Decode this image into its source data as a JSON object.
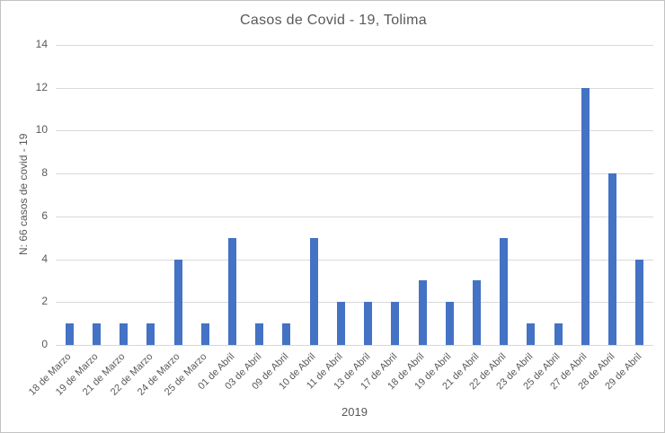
{
  "chart_data": {
    "type": "bar",
    "title": "Casos de Covid - 19, Tolima",
    "xlabel": "2019",
    "ylabel": "N: 66 casos de covid - 19",
    "categories": [
      "18 de Marzo",
      "19 de Marzo",
      "21 de Marzo",
      "22 de Marzo",
      "24 de Marzo",
      "25 de Marzo",
      "01 de Abril",
      "03 de Abril",
      "09 de Abril",
      "10 de Abril",
      "11 de Abril",
      "13 de Abril",
      "17 de Abril",
      "18 de Abril",
      "19 de Abril",
      "21 de Abril",
      "22 de Abril",
      "23 de Abril",
      "25 de Abril",
      "27 de Abril",
      "28 de Abril",
      "29 de Abril"
    ],
    "values": [
      1,
      1,
      1,
      1,
      4,
      1,
      5,
      1,
      1,
      5,
      2,
      2,
      2,
      3,
      2,
      3,
      5,
      1,
      1,
      12,
      8,
      4
    ],
    "total_cases": 66,
    "ylim": [
      0,
      14
    ],
    "yticks": [
      0,
      2,
      4,
      6,
      8,
      10,
      12,
      14
    ],
    "grid": true,
    "legend": "none",
    "x_tick_rotation_deg": 45,
    "colors": {
      "bar": "#4472c4",
      "gridline": "#d9d9d9",
      "axis_line": "#d9d9d9",
      "text": "#595959",
      "chart_border": "#c3c3c3",
      "background": "#ffffff"
    }
  }
}
